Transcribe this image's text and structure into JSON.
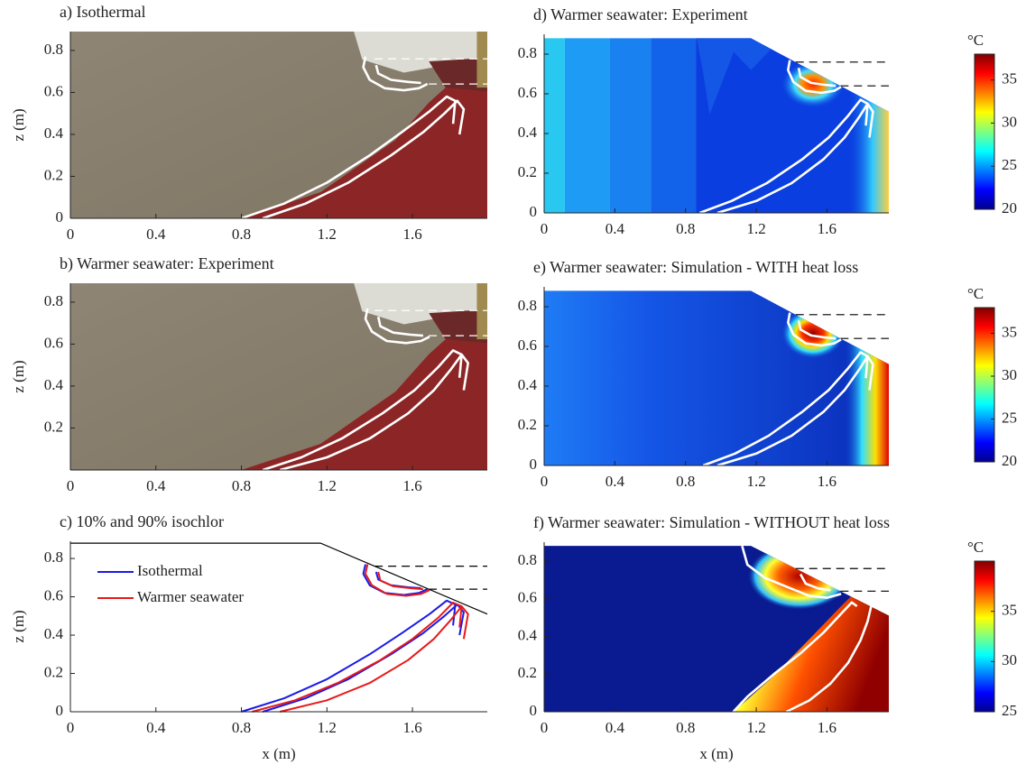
{
  "chart_data": [
    {
      "type": "line",
      "title": "a) Isothermal",
      "ylabel": "z (m)",
      "xlim": [
        0,
        1.95
      ],
      "ylim": [
        0,
        0.89
      ],
      "xticks": [
        0,
        0.4,
        0.8,
        1.2,
        1.6
      ],
      "yticks": [
        0,
        0.2,
        0.4,
        0.6,
        0.8
      ],
      "surface": {
        "x": [
          0,
          1.17,
          1.95
        ],
        "y": [
          0.88,
          0.88,
          0.51
        ]
      },
      "levels": [
        0.76,
        0.64
      ],
      "level_color": "#ffffff",
      "series": [
        {
          "color": "#ffffff",
          "x": [
            1.38,
            1.37,
            1.4,
            1.47,
            1.56,
            1.63,
            1.67,
            null,
            1.43,
            1.44,
            1.5,
            1.58,
            1.64,
            null,
            0.8,
            1.0,
            1.2,
            1.4,
            1.55,
            1.68,
            1.76,
            1.8,
            1.79,
            null,
            0.9,
            1.1,
            1.3,
            1.5,
            1.65,
            1.75,
            1.81,
            1.84,
            1.82
          ],
          "y": [
            0.77,
            0.72,
            0.66,
            0.62,
            0.61,
            0.62,
            0.64,
            null,
            0.73,
            0.69,
            0.66,
            0.65,
            0.645,
            null,
            0,
            0.07,
            0.17,
            0.3,
            0.41,
            0.51,
            0.58,
            0.56,
            0.45,
            null,
            0,
            0.07,
            0.17,
            0.3,
            0.41,
            0.5,
            0.56,
            0.52,
            0.4
          ]
        }
      ]
    },
    {
      "type": "line",
      "title": "b) Warmer seawater: Experiment",
      "ylabel": "z (m)",
      "xlim": [
        0,
        1.95
      ],
      "ylim": [
        0,
        0.89
      ],
      "xticks": [
        0,
        0.4,
        0.8,
        1.2,
        1.6
      ],
      "yticks": [
        0.2,
        0.4,
        0.6,
        0.8
      ],
      "surface": {
        "x": [
          0,
          1.17,
          1.95
        ],
        "y": [
          0.88,
          0.88,
          0.51
        ]
      },
      "levels": [
        0.76,
        0.64
      ],
      "level_color": "#ffffff",
      "series": [
        {
          "color": "#ffffff",
          "x": [
            1.39,
            1.38,
            1.41,
            1.48,
            1.57,
            1.64,
            1.68,
            null,
            1.44,
            1.45,
            1.51,
            1.59,
            1.65,
            null,
            0.9,
            1.08,
            1.27,
            1.46,
            1.61,
            1.72,
            1.79,
            1.83,
            1.82,
            null,
            0.98,
            1.2,
            1.4,
            1.58,
            1.7,
            1.78,
            1.83,
            1.86,
            1.84
          ],
          "y": [
            0.77,
            0.72,
            0.66,
            0.615,
            0.605,
            0.615,
            0.635,
            null,
            0.73,
            0.685,
            0.655,
            0.645,
            0.64,
            null,
            0,
            0.06,
            0.15,
            0.27,
            0.38,
            0.49,
            0.57,
            0.55,
            0.44,
            null,
            0,
            0.06,
            0.15,
            0.27,
            0.38,
            0.48,
            0.55,
            0.51,
            0.38
          ]
        }
      ]
    },
    {
      "type": "line",
      "title": "c) 10% and 90% isochlor",
      "ylabel": "z (m)",
      "xlabel": "x (m)",
      "xlim": [
        0,
        1.95
      ],
      "ylim": [
        0,
        0.89
      ],
      "xticks": [
        0,
        0.4,
        0.8,
        1.2,
        1.6
      ],
      "yticks": [
        0,
        0.2,
        0.4,
        0.6,
        0.8
      ],
      "surface": {
        "x": [
          0,
          1.17,
          1.95
        ],
        "y": [
          0.88,
          0.88,
          0.51
        ]
      },
      "surface_color": "#000000",
      "levels": [
        0.76,
        0.64
      ],
      "level_color": "#000000",
      "legend": "upper left",
      "series": [
        {
          "name": "Isothermal",
          "color": "#1a1ae6",
          "x": [
            1.38,
            1.37,
            1.4,
            1.47,
            1.56,
            1.63,
            1.67,
            null,
            1.43,
            1.44,
            1.5,
            1.58,
            1.64,
            null,
            0.8,
            1.0,
            1.2,
            1.4,
            1.55,
            1.68,
            1.76,
            1.8,
            1.79,
            null,
            0.9,
            1.1,
            1.3,
            1.5,
            1.65,
            1.75,
            1.81,
            1.84,
            1.82
          ],
          "y": [
            0.77,
            0.72,
            0.66,
            0.62,
            0.61,
            0.62,
            0.64,
            null,
            0.73,
            0.69,
            0.66,
            0.65,
            0.645,
            null,
            0,
            0.07,
            0.17,
            0.3,
            0.41,
            0.51,
            0.58,
            0.56,
            0.45,
            null,
            0,
            0.07,
            0.17,
            0.3,
            0.41,
            0.5,
            0.56,
            0.52,
            0.4
          ]
        },
        {
          "name": "Warmer seawater",
          "color": "#e61a1a",
          "x": [
            1.39,
            1.38,
            1.41,
            1.48,
            1.57,
            1.64,
            1.68,
            null,
            1.44,
            1.45,
            1.51,
            1.59,
            1.65,
            null,
            0.85,
            1.05,
            1.25,
            1.45,
            1.6,
            1.72,
            1.79,
            1.83,
            1.82,
            null,
            0.98,
            1.2,
            1.4,
            1.58,
            1.7,
            1.78,
            1.83,
            1.86,
            1.84
          ],
          "y": [
            0.77,
            0.72,
            0.66,
            0.615,
            0.605,
            0.615,
            0.635,
            null,
            0.73,
            0.685,
            0.655,
            0.645,
            0.64,
            null,
            0,
            0.06,
            0.15,
            0.27,
            0.38,
            0.49,
            0.57,
            0.55,
            0.44,
            null,
            0,
            0.06,
            0.15,
            0.27,
            0.38,
            0.48,
            0.55,
            0.51,
            0.38
          ]
        }
      ]
    },
    {
      "type": "line",
      "title": "d) Warmer seawater: Experiment",
      "colormap": "jet",
      "colorbar_label": "°C",
      "clim": [
        20,
        38
      ],
      "cticks": [
        20,
        25,
        30,
        35
      ],
      "xlim": [
        0,
        1.95
      ],
      "ylim": [
        0,
        0.9
      ],
      "xticks": [
        0,
        0.4,
        0.8,
        1.2,
        1.6
      ],
      "yticks": [
        0,
        0.2,
        0.4,
        0.6,
        0.8
      ],
      "surface": {
        "x": [
          0,
          1.17,
          1.95
        ],
        "y": [
          0.88,
          0.88,
          0.51
        ]
      },
      "levels": [
        0.76,
        0.64
      ],
      "level_color": "#000000",
      "series": [
        {
          "color": "#ffffff",
          "x": [
            1.39,
            1.38,
            1.41,
            1.48,
            1.57,
            1.64,
            1.68,
            null,
            1.44,
            1.45,
            1.51,
            1.59,
            1.65,
            null,
            0.88,
            1.06,
            1.26,
            1.46,
            1.61,
            1.72,
            1.79,
            1.83,
            1.82,
            null,
            0.98,
            1.2,
            1.4,
            1.58,
            1.7,
            1.78,
            1.83,
            1.86,
            1.84
          ],
          "y": [
            0.77,
            0.72,
            0.66,
            0.615,
            0.605,
            0.615,
            0.635,
            null,
            0.73,
            0.685,
            0.655,
            0.645,
            0.64,
            null,
            0,
            0.06,
            0.15,
            0.27,
            0.38,
            0.49,
            0.57,
            0.55,
            0.44,
            null,
            0,
            0.06,
            0.15,
            0.27,
            0.38,
            0.48,
            0.55,
            0.51,
            0.38
          ]
        }
      ]
    },
    {
      "type": "line",
      "title": "e) Warmer seawater: Simulation - WITH heat loss",
      "colormap": "jet",
      "colorbar_label": "°C",
      "clim": [
        20,
        38
      ],
      "cticks": [
        20,
        25,
        30,
        35
      ],
      "xlim": [
        0,
        1.95
      ],
      "ylim": [
        0,
        0.9
      ],
      "xticks": [
        0,
        0.4,
        0.8,
        1.2,
        1.6
      ],
      "yticks": [
        0,
        0.2,
        0.4,
        0.6,
        0.8
      ],
      "surface": {
        "x": [
          0,
          1.17,
          1.95
        ],
        "y": [
          0.88,
          0.88,
          0.51
        ]
      },
      "levels": [
        0.76,
        0.64
      ],
      "level_color": "#000000",
      "series": [
        {
          "color": "#ffffff",
          "x": [
            1.39,
            1.38,
            1.41,
            1.48,
            1.57,
            1.64,
            1.68,
            null,
            1.44,
            1.45,
            1.51,
            1.59,
            1.65,
            null,
            0.9,
            1.08,
            1.27,
            1.46,
            1.61,
            1.72,
            1.79,
            1.83,
            1.82,
            null,
            0.98,
            1.2,
            1.4,
            1.58,
            1.7,
            1.78,
            1.83,
            1.86,
            1.84
          ],
          "y": [
            0.77,
            0.72,
            0.66,
            0.615,
            0.605,
            0.615,
            0.635,
            null,
            0.73,
            0.685,
            0.655,
            0.645,
            0.64,
            null,
            0,
            0.06,
            0.15,
            0.27,
            0.38,
            0.49,
            0.57,
            0.55,
            0.44,
            null,
            0,
            0.06,
            0.15,
            0.27,
            0.38,
            0.48,
            0.55,
            0.51,
            0.38
          ]
        }
      ]
    },
    {
      "type": "line",
      "title": "f) Warmer seawater: Simulation - WITHOUT heat loss",
      "xlabel": "x (m)",
      "colormap": "jet",
      "colorbar_label": "°C",
      "clim": [
        25,
        40
      ],
      "cticks": [
        25,
        30,
        35
      ],
      "xlim": [
        0,
        1.95
      ],
      "ylim": [
        0,
        0.9
      ],
      "xticks": [
        0,
        0.4,
        0.8,
        1.2,
        1.6
      ],
      "yticks": [
        0,
        0.2,
        0.4,
        0.6,
        0.8
      ],
      "surface": {
        "x": [
          0,
          1.17,
          1.95
        ],
        "y": [
          0.88,
          0.88,
          0.51
        ]
      },
      "levels": [
        0.76,
        0.64
      ],
      "level_color": "#000000",
      "series": [
        {
          "color": "#ffffff",
          "x": [
            1.12,
            1.15,
            1.25,
            1.38,
            1.5,
            1.6,
            1.68,
            null,
            1.45,
            1.48,
            1.55,
            1.62,
            null,
            1.07,
            1.15,
            1.3,
            1.45,
            1.58,
            1.68,
            1.74,
            1.77,
            null,
            1.37,
            1.5,
            1.62,
            1.72,
            1.79,
            1.83,
            1.85
          ],
          "y": [
            0.88,
            0.78,
            0.71,
            0.66,
            0.615,
            0.605,
            0.625,
            null,
            0.73,
            0.68,
            0.655,
            0.645,
            null,
            0,
            0.08,
            0.2,
            0.31,
            0.42,
            0.52,
            0.58,
            0.56,
            null,
            0,
            0.06,
            0.15,
            0.26,
            0.38,
            0.48,
            0.56
          ]
        }
      ]
    }
  ]
}
